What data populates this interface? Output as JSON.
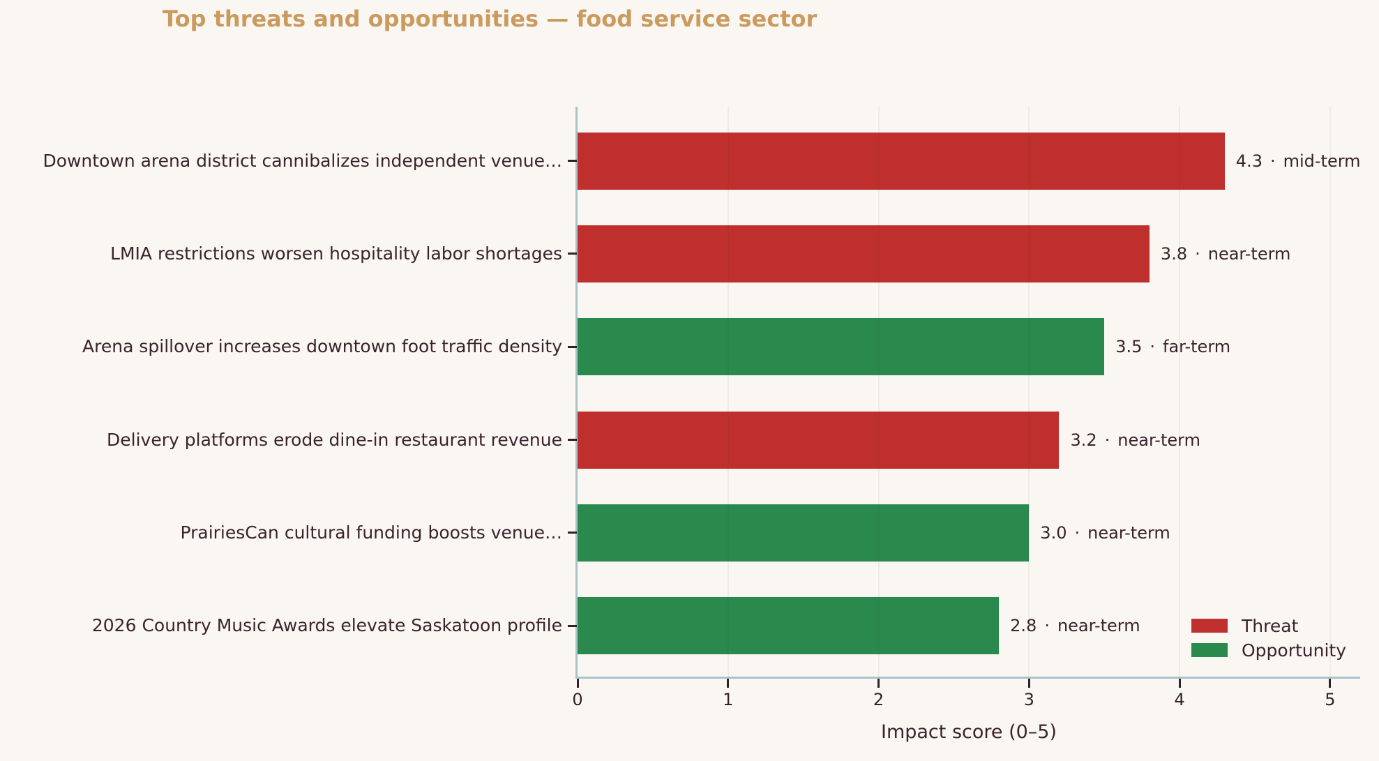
{
  "colors": {
    "background": "#faf7f3",
    "title": "#cb9a5e",
    "text": "#3a232b",
    "tick": "#332028",
    "axis_line": "#a9c3c9",
    "gridline": "rgba(58,36,43,0.06)",
    "threat": "#bf2f2d",
    "opportunity": "#2a8a4d"
  },
  "chart_data": {
    "type": "bar",
    "orientation": "horizontal",
    "title": "Top threats and opportunities — food service sector",
    "xlabel": "Impact score (0–5)",
    "ylabel": "",
    "xlim": [
      0,
      5.2
    ],
    "x_ticks": [
      0,
      1,
      2,
      3,
      4,
      5
    ],
    "grid": "vertical",
    "value_separator": "·",
    "legend": {
      "position": "lower-right",
      "entries": [
        {
          "label": "Threat",
          "color_key": "threat"
        },
        {
          "label": "Opportunity",
          "color_key": "opportunity"
        }
      ]
    },
    "items": [
      {
        "label": "Downtown arena district cannibalizes independent venue…",
        "score": 4.3,
        "score_label": "4.3",
        "term": "mid-term",
        "category": "threat"
      },
      {
        "label": "LMIA restrictions worsen hospitality labor shortages",
        "score": 3.8,
        "score_label": "3.8",
        "term": "near-term",
        "category": "threat"
      },
      {
        "label": "Arena spillover increases downtown foot traffic density",
        "score": 3.5,
        "score_label": "3.5",
        "term": "far-term",
        "category": "opportunity"
      },
      {
        "label": "Delivery platforms erode dine-in restaurant revenue",
        "score": 3.2,
        "score_label": "3.2",
        "term": "near-term",
        "category": "threat"
      },
      {
        "label": "PrairiesCan cultural funding boosts venue…",
        "score": 3.0,
        "score_label": "3.0",
        "term": "near-term",
        "category": "opportunity"
      },
      {
        "label": "2026 Country Music Awards elevate Saskatoon profile",
        "score": 2.8,
        "score_label": "2.8",
        "term": "near-term",
        "category": "opportunity"
      }
    ]
  }
}
